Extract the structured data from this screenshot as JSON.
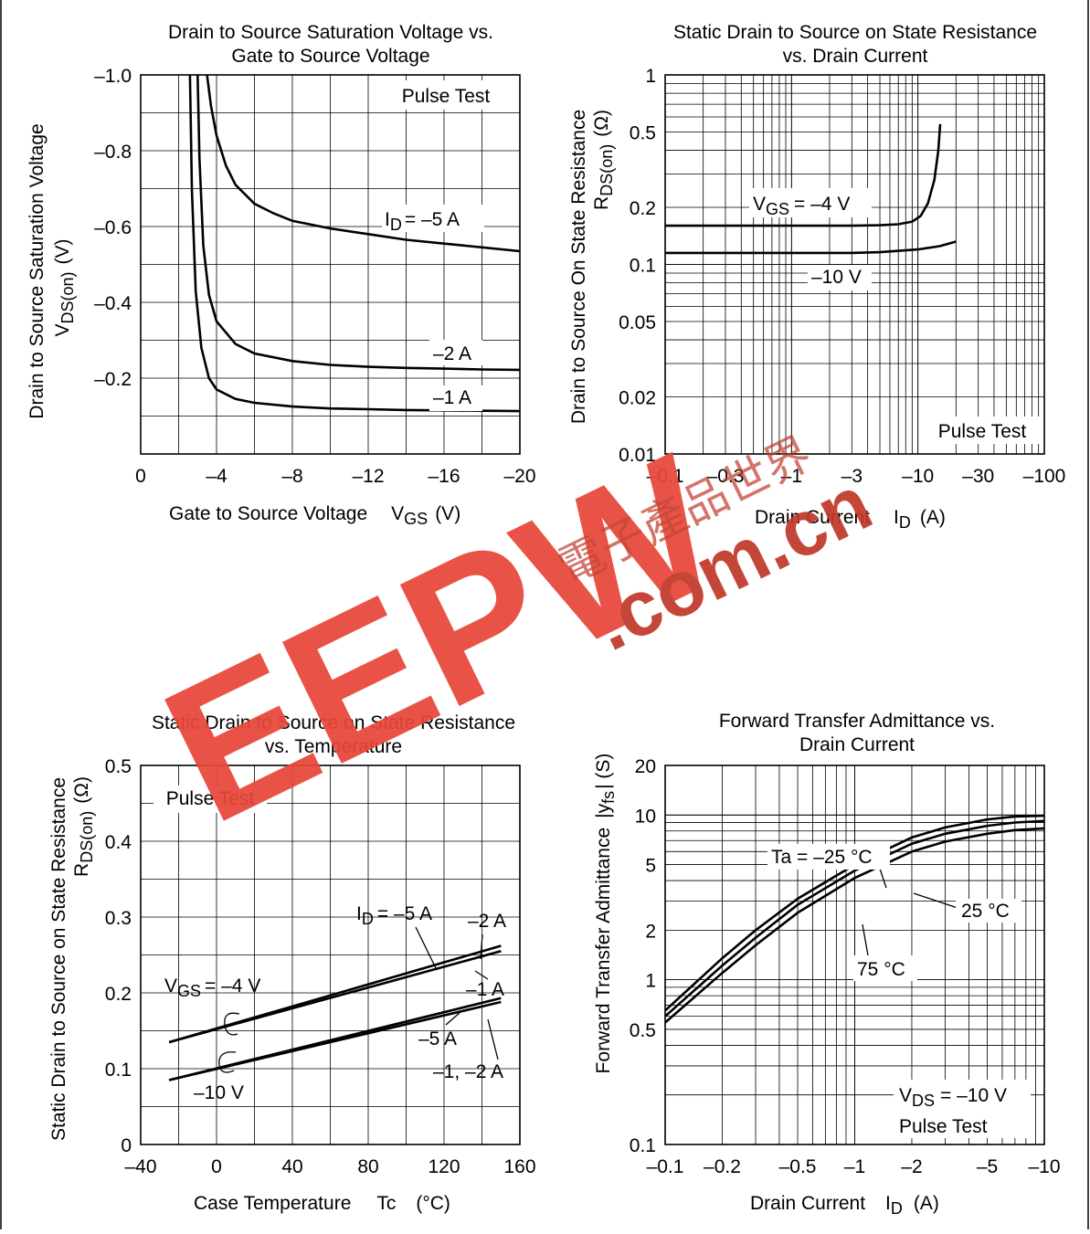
{
  "chart_data": [
    {
      "type": "line",
      "title": [
        "Drain to Source Saturation Voltage vs.",
        "Gate to Source Voltage"
      ],
      "xlabel": "Gate to Source Voltage",
      "xlabel_sym": "V",
      "xlabel_sub": "GS",
      "xlabel_unit": "(V)",
      "ylabel": "Drain to Source Saturation Voltage",
      "ylabel_sym": "V",
      "ylabel_sub": "DS(on)",
      "ylabel_unit": "(V)",
      "xlim": [
        0,
        -20
      ],
      "ylim": [
        0,
        -1.0
      ],
      "x_ticks": [
        "0",
        "–4",
        "–8",
        "–12",
        "–16",
        "–20"
      ],
      "y_ticks": [
        "–1.0",
        "–0.8",
        "–0.6",
        "–0.4",
        "–0.2"
      ],
      "annotation": "Pulse Test",
      "series": [
        {
          "label_sym": "I",
          "label_sub": "D",
          "label": "= –5 A",
          "x": [
            -3.5,
            -3.7,
            -4.0,
            -4.5,
            -5,
            -6,
            -7,
            -8,
            -10,
            -12,
            -14,
            -16,
            -18,
            -20
          ],
          "y": [
            -1.0,
            -0.92,
            -0.84,
            -0.76,
            -0.71,
            -0.66,
            -0.635,
            -0.615,
            -0.595,
            -0.58,
            -0.565,
            -0.555,
            -0.545,
            -0.535
          ]
        },
        {
          "label": "–2 A",
          "x": [
            -3.0,
            -3.1,
            -3.3,
            -3.6,
            -4,
            -5,
            -6,
            -8,
            -10,
            -12,
            -14,
            -16,
            -18,
            -20
          ],
          "y": [
            -1.0,
            -0.78,
            -0.55,
            -0.42,
            -0.35,
            -0.29,
            -0.265,
            -0.245,
            -0.235,
            -0.23,
            -0.227,
            -0.225,
            -0.223,
            -0.222
          ]
        },
        {
          "label": "–1 A",
          "x": [
            -2.6,
            -2.7,
            -2.9,
            -3.2,
            -3.6,
            -4,
            -5,
            -6,
            -8,
            -10,
            -12,
            -14,
            -16,
            -18,
            -20
          ],
          "y": [
            -1.0,
            -0.7,
            -0.43,
            -0.28,
            -0.2,
            -0.17,
            -0.145,
            -0.135,
            -0.125,
            -0.12,
            -0.118,
            -0.116,
            -0.115,
            -0.114,
            -0.113
          ]
        }
      ]
    },
    {
      "type": "line",
      "title": [
        "Static Drain to Source on State Resistance",
        "vs. Drain Current"
      ],
      "xlabel": "Drain Current",
      "xlabel_sym": "I",
      "xlabel_sub": "D",
      "xlabel_unit": "(A)",
      "ylabel": "Drain to Source On State Resistance",
      "ylabel_sym": "R",
      "ylabel_sub": "DS(on)",
      "ylabel_unit": "(Ω)",
      "xscale": "log",
      "yscale": "log",
      "xlim": [
        -0.1,
        -100
      ],
      "ylim": [
        0.01,
        1
      ],
      "x_ticks": [
        "–0.1",
        "–0.3",
        "–1",
        "–3",
        "–10",
        "–30",
        "–100"
      ],
      "y_ticks": [
        "1",
        "0.5",
        "0.2",
        "0.1",
        "0.05",
        "0.02",
        "0.01"
      ],
      "annotation": "Pulse Test",
      "series": [
        {
          "label_sym": "V",
          "label_sub": "GS",
          "label": "= –4 V",
          "x": [
            -0.1,
            -0.3,
            -1,
            -3,
            -5,
            -7,
            -9,
            -10.5,
            -12,
            -13.5,
            -14.5,
            -15
          ],
          "y": [
            0.16,
            0.16,
            0.16,
            0.16,
            0.161,
            0.163,
            0.168,
            0.18,
            0.21,
            0.28,
            0.4,
            0.55
          ]
        },
        {
          "label": "–10 V",
          "x": [
            -0.1,
            -0.3,
            -1,
            -3,
            -5,
            -10,
            -15,
            -20
          ],
          "y": [
            0.115,
            0.115,
            0.115,
            0.115,
            0.116,
            0.12,
            0.125,
            0.132
          ]
        }
      ]
    },
    {
      "type": "line",
      "title": [
        "Static Drain to Source on State Resistance",
        "vs. Temperature"
      ],
      "xlabel": "Case Temperature",
      "xlabel_sym": "Tc",
      "xlabel_unit": "(°C)",
      "ylabel": "Static Drain to Source on State Resistance",
      "ylabel_sym": "R",
      "ylabel_sub": "DS(on)",
      "ylabel_unit": "(Ω)",
      "xlim": [
        -40,
        160
      ],
      "ylim": [
        0,
        0.5
      ],
      "x_ticks": [
        "–40",
        "0",
        "40",
        "80",
        "120",
        "160"
      ],
      "y_ticks": [
        "0.5",
        "0.4",
        "0.3",
        "0.2",
        "0.1",
        "0"
      ],
      "annotation": "Pulse Test",
      "labels": {
        "vgs4_sym": "V",
        "vgs4_sub": "GS",
        "vgs4": "= –4 V",
        "vgs10": "–10 V",
        "id5_sym": "I",
        "id5_sub": "D",
        "id5": "= –5 A",
        "a2": "–2 A",
        "a1": "–1 A",
        "a5": "–5 A",
        "a12": "–1, –2 A"
      },
      "series": [
        {
          "group": "VGS = –4 V, ID = –5 A",
          "x": [
            -25,
            150
          ],
          "y": [
            0.135,
            0.262
          ]
        },
        {
          "group": "VGS = –4 V, ID = –2 A",
          "x": [
            -25,
            150
          ],
          "y": [
            0.135,
            0.255
          ]
        },
        {
          "group": "VGS = –10 V, ID = –1 A",
          "x": [
            -25,
            150
          ],
          "y": [
            0.085,
            0.193
          ]
        },
        {
          "group": "VGS = –10 V, ID = –5 A",
          "x": [
            -25,
            150
          ],
          "y": [
            0.085,
            0.188
          ]
        }
      ]
    },
    {
      "type": "line",
      "title": [
        "Forward Transfer Admittance vs.",
        "Drain Current"
      ],
      "xlabel": "Drain Current",
      "xlabel_sym": "I",
      "xlabel_sub": "D",
      "xlabel_unit": "(A)",
      "ylabel": "Forward Transfer Admittance",
      "ylabel_sym": "|y",
      "ylabel_sub": "fs",
      "ylabel_unit": "| (S)",
      "xscale": "log",
      "yscale": "log",
      "xlim": [
        -0.1,
        -10
      ],
      "ylim": [
        0.1,
        20
      ],
      "x_ticks": [
        "–0.1",
        "–0.2",
        "–0.5",
        "–1",
        "–2",
        "–5",
        "–10"
      ],
      "y_ticks": [
        "20",
        "10",
        "5",
        "2",
        "1",
        "0.5",
        "0.1"
      ],
      "annotation_sym": "V",
      "annotation_sub": "DS",
      "annotation_val": "= –10 V",
      "annotation": "Pulse Test",
      "series": [
        {
          "label": "Ta = –25 °C",
          "x": [
            -0.1,
            -0.2,
            -0.3,
            -0.5,
            -1,
            -2,
            -3,
            -5,
            -7,
            -10
          ],
          "y": [
            0.65,
            1.35,
            2.0,
            3.1,
            5.0,
            7.3,
            8.4,
            9.4,
            9.8,
            9.9
          ]
        },
        {
          "label": "25 °C",
          "x": [
            -0.1,
            -0.2,
            -0.3,
            -0.5,
            -1,
            -2,
            -3,
            -5,
            -7,
            -10
          ],
          "y": [
            0.6,
            1.22,
            1.8,
            2.85,
            4.6,
            6.7,
            7.7,
            8.6,
            9.0,
            9.2
          ]
        },
        {
          "label": "75 °C",
          "x": [
            -0.1,
            -0.2,
            -0.3,
            -0.5,
            -1,
            -2,
            -3,
            -5,
            -7,
            -10
          ],
          "y": [
            0.55,
            1.1,
            1.62,
            2.55,
            4.15,
            6.0,
            6.9,
            7.7,
            8.1,
            8.3
          ]
        }
      ]
    }
  ],
  "watermark": {
    "brand": "EEPW",
    "domain": ".com.cn",
    "cn": "電子產品世界",
    "brand_color": "#e8473a",
    "text_color": "#c0392b"
  }
}
